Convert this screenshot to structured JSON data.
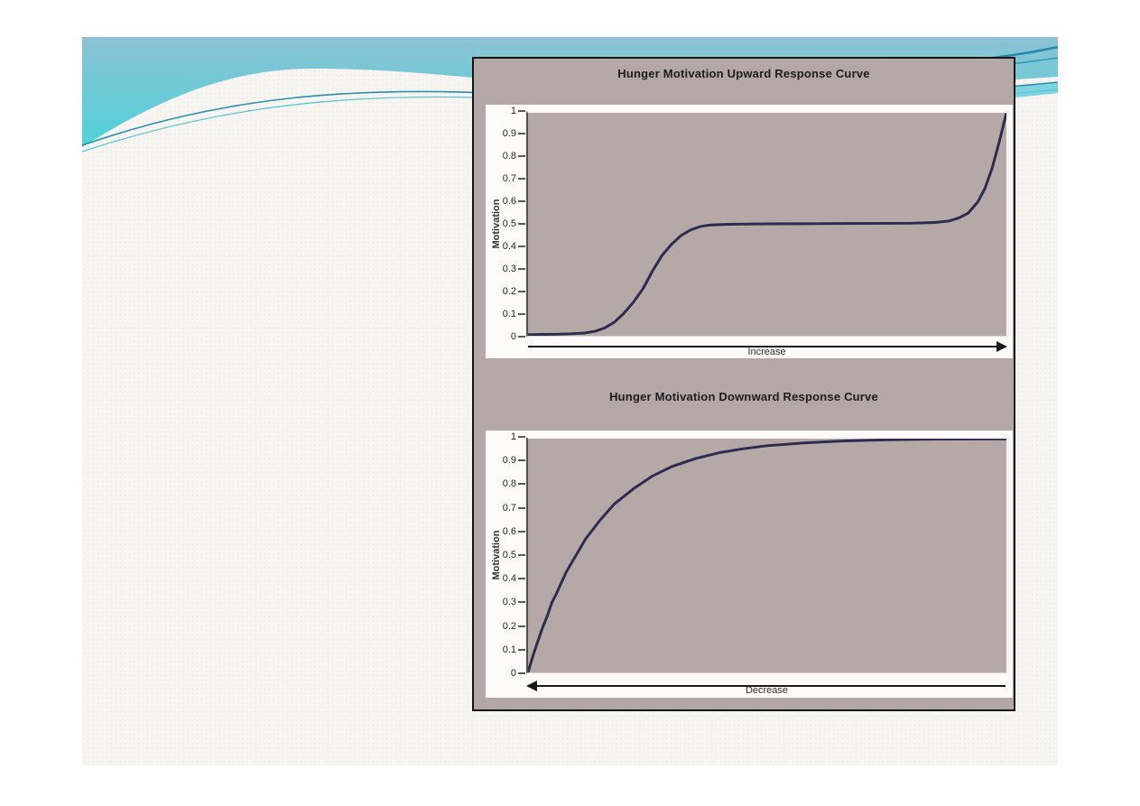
{
  "slide": {
    "type": "presentation-slide",
    "background_color": "#f7f5f1",
    "header_band": {
      "gradient_top": "#8cc2d4",
      "gradient_bottom": "#4fd2d9",
      "accent_line_dark": "#2b8fae",
      "accent_line_light": "#57c3cf"
    }
  },
  "panel": {
    "background_color": "#b3a8a5",
    "border_color": "#141414"
  },
  "chart_data": [
    {
      "type": "line",
      "title": "Hunger Motivation Upward Response Curve",
      "xlabel": "Increase",
      "ylabel": "Motivation",
      "xlim": [
        0,
        1
      ],
      "ylim": [
        0,
        1
      ],
      "grid": "off",
      "legend": "none",
      "arrow_direction": "right",
      "y_ticks": [
        "1",
        "0.9",
        "0.8",
        "0.7",
        "0.6",
        "0.5",
        "0.4",
        "0.3",
        "0.2",
        "0.1",
        "0"
      ],
      "curve_color": "#2e2a50",
      "plot_background": "#b4a9a6",
      "series": [
        {
          "name": "Motivation",
          "points": [
            [
              0.0,
              0.005
            ],
            [
              0.03,
              0.006
            ],
            [
              0.06,
              0.007
            ],
            [
              0.09,
              0.009
            ],
            [
              0.12,
              0.013
            ],
            [
              0.14,
              0.02
            ],
            [
              0.16,
              0.035
            ],
            [
              0.18,
              0.06
            ],
            [
              0.2,
              0.1
            ],
            [
              0.22,
              0.15
            ],
            [
              0.24,
              0.21
            ],
            [
              0.25,
              0.25
            ],
            [
              0.26,
              0.29
            ],
            [
              0.28,
              0.36
            ],
            [
              0.3,
              0.41
            ],
            [
              0.32,
              0.45
            ],
            [
              0.34,
              0.475
            ],
            [
              0.36,
              0.49
            ],
            [
              0.38,
              0.497
            ],
            [
              0.42,
              0.5
            ],
            [
              0.5,
              0.502
            ],
            [
              0.6,
              0.503
            ],
            [
              0.7,
              0.504
            ],
            [
              0.8,
              0.505
            ],
            [
              0.85,
              0.508
            ],
            [
              0.88,
              0.515
            ],
            [
              0.9,
              0.528
            ],
            [
              0.92,
              0.55
            ],
            [
              0.94,
              0.6
            ],
            [
              0.955,
              0.66
            ],
            [
              0.97,
              0.75
            ],
            [
              0.985,
              0.87
            ],
            [
              1.0,
              1.0
            ]
          ]
        }
      ]
    },
    {
      "type": "line",
      "title": "Hunger Motivation Downward Response Curve",
      "xlabel": "Decrease",
      "ylabel": "Motivation",
      "xlim": [
        0,
        1
      ],
      "ylim": [
        0,
        1
      ],
      "grid": "off",
      "legend": "none",
      "arrow_direction": "left",
      "y_ticks": [
        "1",
        "0.9",
        "0.8",
        "0.7",
        "0.6",
        "0.5",
        "0.4",
        "0.3",
        "0.2",
        "0.1",
        "0"
      ],
      "curve_color": "#2e2a50",
      "plot_background": "#b4a9a6",
      "series": [
        {
          "name": "Motivation",
          "points": [
            [
              0.0,
              0.0
            ],
            [
              0.01,
              0.07
            ],
            [
              0.02,
              0.13
            ],
            [
              0.03,
              0.19
            ],
            [
              0.04,
              0.24
            ],
            [
              0.05,
              0.3
            ],
            [
              0.06,
              0.34
            ],
            [
              0.08,
              0.43
            ],
            [
              0.1,
              0.5
            ],
            [
              0.12,
              0.57
            ],
            [
              0.15,
              0.65
            ],
            [
              0.18,
              0.72
            ],
            [
              0.22,
              0.785
            ],
            [
              0.26,
              0.84
            ],
            [
              0.3,
              0.88
            ],
            [
              0.35,
              0.915
            ],
            [
              0.4,
              0.94
            ],
            [
              0.45,
              0.957
            ],
            [
              0.5,
              0.97
            ],
            [
              0.58,
              0.982
            ],
            [
              0.66,
              0.99
            ],
            [
              0.75,
              0.995
            ],
            [
              0.85,
              0.998
            ],
            [
              1.0,
              0.999
            ]
          ]
        }
      ]
    }
  ]
}
